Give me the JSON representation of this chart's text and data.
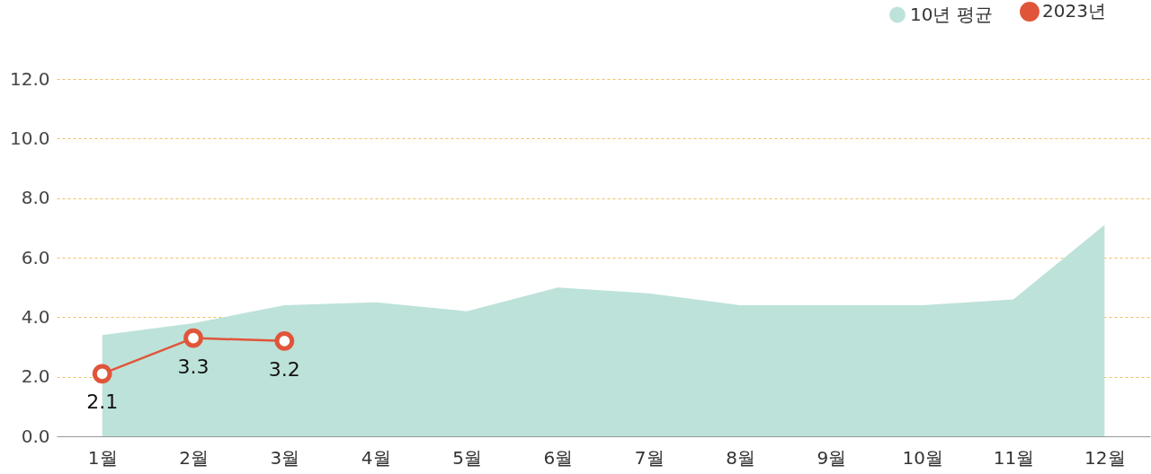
{
  "chart_data": {
    "type": "area",
    "categories": [
      "1월",
      "2월",
      "3월",
      "4월",
      "5월",
      "6월",
      "7월",
      "8월",
      "9월",
      "10월",
      "11월",
      "12월"
    ],
    "series": [
      {
        "name": "10년 평균",
        "color": "#bde2d9",
        "values": [
          3.4,
          3.8,
          4.4,
          4.5,
          4.2,
          5.0,
          4.8,
          4.4,
          4.4,
          4.4,
          4.6,
          7.1
        ]
      },
      {
        "name": "2023년",
        "type": "line",
        "marker": "circle",
        "color": "#e0553a",
        "values": [
          2.1,
          3.3,
          3.2,
          null,
          null,
          null,
          null,
          null,
          null,
          null,
          null,
          null
        ],
        "value_labels": [
          "2.1",
          "3.3",
          "3.2",
          null,
          null,
          null,
          null,
          null,
          null,
          null,
          null,
          null
        ]
      }
    ],
    "ylim": [
      0,
      12
    ],
    "yticks": [
      {
        "value": 0,
        "label": "0.0"
      },
      {
        "value": 2,
        "label": "2.0"
      },
      {
        "value": 4,
        "label": "4.0"
      },
      {
        "value": 6,
        "label": "6.0"
      },
      {
        "value": 8,
        "label": "8.0"
      },
      {
        "value": 10,
        "label": "10.0"
      },
      {
        "value": 12,
        "label": "12.0"
      }
    ],
    "grid": "y",
    "legend": "top right"
  }
}
